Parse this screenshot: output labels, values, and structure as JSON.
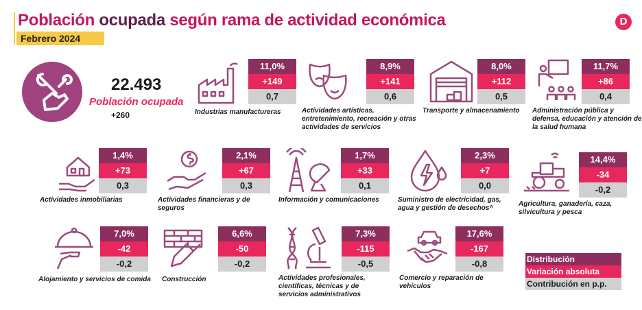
{
  "header": {
    "title_part1": "Población",
    "title_part2": "ocupada",
    "title_part3": "según rama de actividad económica",
    "date": "Febrero 2024"
  },
  "logo": {
    "letter": "D"
  },
  "total": {
    "value": "22.493",
    "label": "Población ocupada",
    "variation": "+260"
  },
  "legend": {
    "distribution": "Distribución",
    "variation": "Variación absoluta",
    "contribution": "Contribución en p.p."
  },
  "colors": {
    "distribution": "#8d2f5e",
    "variation": "#e8285c",
    "contribution": "#d0d0d0",
    "icon": "#9b4b7b",
    "accent": "#f7c948"
  },
  "chart_data": {
    "type": "table",
    "title": "Población ocupada según rama de actividad económica",
    "columns": [
      "Distribución",
      "Variación absoluta",
      "Contribución en p.p."
    ],
    "rows": [
      {
        "name": "Industrias manufactureras",
        "distribution": "11,0%",
        "variation": "+149",
        "contribution": "0,7"
      },
      {
        "name": "Actividades artísticas, entretenimiento, recreación y otras actividades de servicios",
        "distribution": "8,9%",
        "variation": "+141",
        "contribution": "0,6"
      },
      {
        "name": "Transporte y almacenamiento",
        "distribution": "8,0%",
        "variation": "+112",
        "contribution": "0,5"
      },
      {
        "name": "Administración pública y defensa, educación y atención de la salud humana",
        "distribution": "11,7%",
        "variation": "+86",
        "contribution": "0,4"
      },
      {
        "name": "Actividades inmobiliarias",
        "distribution": "1,4%",
        "variation": "+73",
        "contribution": "0,3"
      },
      {
        "name": "Actividades financieras y de seguros",
        "distribution": "2,1%",
        "variation": "+67",
        "contribution": "0,3"
      },
      {
        "name": "Información y comunicaciones",
        "distribution": "1,7%",
        "variation": "+33",
        "contribution": "0,1"
      },
      {
        "name": "Suministro de electricidad, gas, agua y gestión de desechos^",
        "distribution": "2,3%",
        "variation": "+7",
        "contribution": "0,0"
      },
      {
        "name": "Agricultura, ganadería, caza, silvicultura y pesca",
        "distribution": "14,4%",
        "variation": "-34",
        "contribution": "-0,2"
      },
      {
        "name": "Alojamiento y servicios de comida",
        "distribution": "7,0%",
        "variation": "-42",
        "contribution": "-0,2"
      },
      {
        "name": "Construcción",
        "distribution": "6,6%",
        "variation": "-50",
        "contribution": "-0,2"
      },
      {
        "name": "Actividades profesionales, científicas, técnicas y de servicios administrativos",
        "distribution": "7,3%",
        "variation": "-115",
        "contribution": "-0,5"
      },
      {
        "name": "Comercio y reparación de vehículos",
        "distribution": "17,6%",
        "variation": "-167",
        "contribution": "-0,8"
      }
    ]
  }
}
